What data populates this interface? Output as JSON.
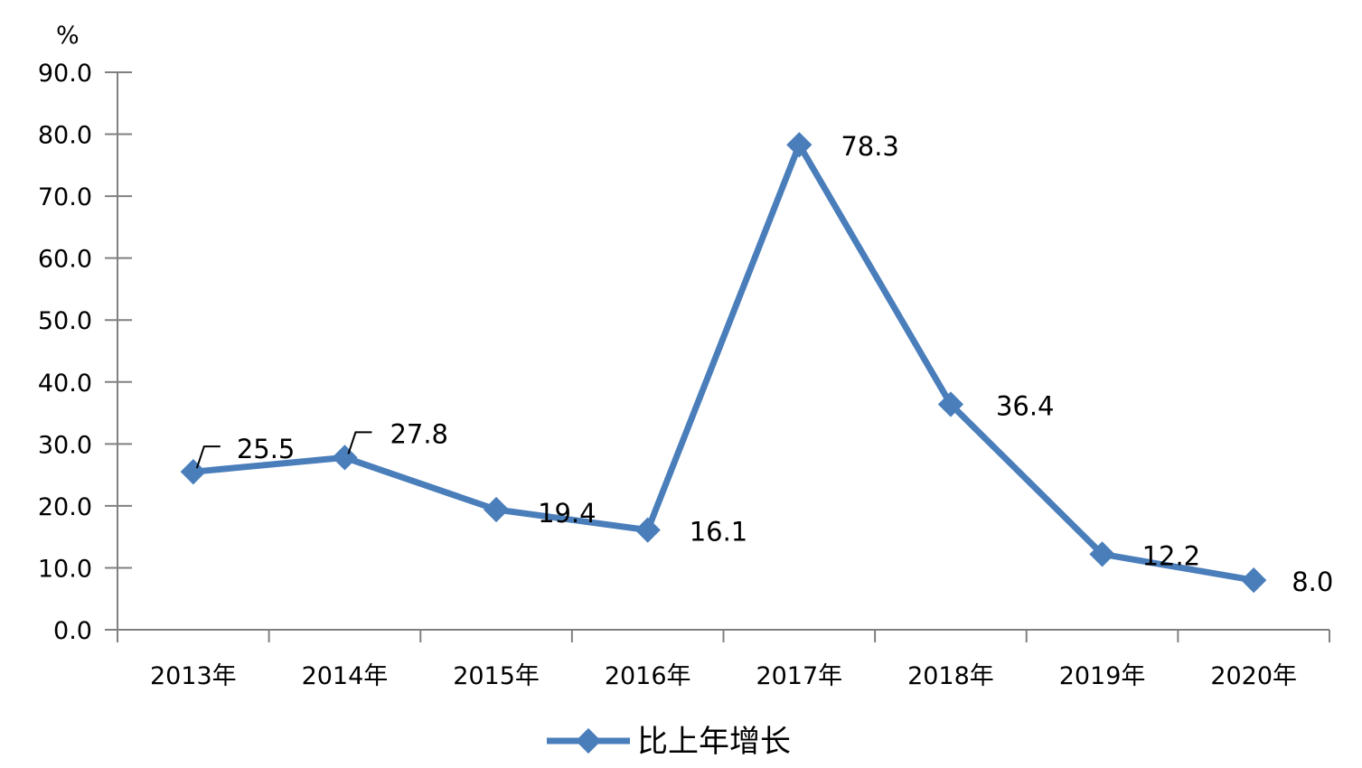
{
  "chart_data": {
    "type": "line",
    "unit_label": "%",
    "categories": [
      "2013年",
      "2014年",
      "2015年",
      "2016年",
      "2017年",
      "2018年",
      "2019年",
      "2020年"
    ],
    "series": [
      {
        "name": "比上年增长",
        "values": [
          25.5,
          27.8,
          19.4,
          16.1,
          78.3,
          36.4,
          12.2,
          8.0
        ],
        "data_labels": [
          "25.5",
          "27.8",
          "19.4",
          "16.1",
          "78.3",
          "36.4",
          "12.2",
          "8.0"
        ],
        "color": "#4A7EBB"
      }
    ],
    "ylim": [
      0,
      90
    ],
    "y_ticks": [
      "0.0",
      "10.0",
      "20.0",
      "30.0",
      "40.0",
      "50.0",
      "60.0",
      "70.0",
      "80.0",
      "90.0"
    ],
    "grid": false,
    "legend_position": "bottom"
  }
}
